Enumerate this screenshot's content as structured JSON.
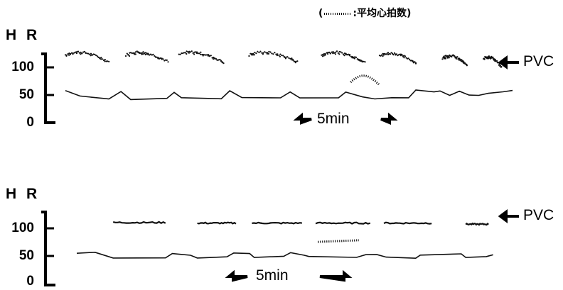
{
  "legend_note": {
    "open": "(",
    "text": ":平均心拍数)"
  },
  "chart_data": [
    {
      "type": "scatter",
      "ylabel": "H R",
      "yticks": [
        "100",
        "50",
        "0"
      ],
      "ytick_values": [
        100,
        50,
        0
      ],
      "ylim": [
        0,
        130
      ],
      "annotation": "PVC",
      "annotation_y": 108,
      "scale_bar": "5min",
      "grid": false,
      "upper_bursts": [
        {
          "t0": 0,
          "t1": 3.6,
          "shape": "arc",
          "peak": 130
        },
        {
          "t0": 5.0,
          "t1": 8.5,
          "shape": "arc",
          "peak": 130
        },
        {
          "t0": 9.4,
          "t1": 13.0,
          "shape": "arc",
          "peak": 130
        },
        {
          "t0": 15.2,
          "t1": 19.2,
          "shape": "arc",
          "peak": 130
        },
        {
          "t0": 21.2,
          "t1": 24.8,
          "shape": "arc",
          "peak": 130
        },
        {
          "t0": 26.0,
          "t1": 29.0,
          "shape": "arc",
          "peak": 128
        },
        {
          "t0": 31.2,
          "t1": 33.2,
          "shape": "arc",
          "peak": 124
        },
        {
          "t0": 34.6,
          "t1": 36.0,
          "shape": "arc",
          "peak": 122
        }
      ],
      "baseline": [
        [
          0,
          58
        ],
        [
          1.2,
          48
        ],
        [
          3.6,
          44
        ],
        [
          4.6,
          57
        ],
        [
          5.4,
          42
        ],
        [
          8.4,
          44
        ],
        [
          9.0,
          56
        ],
        [
          9.6,
          44
        ],
        [
          12.9,
          43
        ],
        [
          13.6,
          58
        ],
        [
          14.6,
          46
        ],
        [
          17.8,
          44
        ],
        [
          18.6,
          55
        ],
        [
          19.4,
          46
        ],
        [
          22.6,
          45
        ],
        [
          23.2,
          56
        ],
        [
          24.6,
          46
        ],
        [
          25.6,
          44
        ],
        [
          27.0,
          45
        ],
        [
          28.4,
          45
        ],
        [
          29.0,
          60
        ],
        [
          30.5,
          57
        ],
        [
          31.0,
          56
        ],
        [
          31.8,
          48
        ],
        [
          32.6,
          58
        ],
        [
          33.4,
          50
        ],
        [
          34.2,
          48
        ],
        [
          35.0,
          54
        ],
        [
          36.2,
          56
        ],
        [
          37.0,
          58
        ]
      ],
      "mean_hr": {
        "t0": 23.6,
        "t1": 26.0,
        "shape": "arc",
        "peak": 85,
        "end": 68
      }
    },
    {
      "type": "scatter",
      "ylabel": "H R",
      "yticks": [
        "100",
        "50",
        "0"
      ],
      "ytick_values": [
        100,
        50,
        0
      ],
      "ylim": [
        0,
        130
      ],
      "annotation": "PVC",
      "annotation_y": 108,
      "scale_bar": "5min",
      "grid": false,
      "upper_segments": [
        {
          "t0": 3.2,
          "t1": 7.8,
          "level": 113
        },
        {
          "t0": 10.6,
          "t1": 14.0,
          "level": 112
        },
        {
          "t0": 15.4,
          "t1": 19.8,
          "level": 112
        },
        {
          "t0": 21.0,
          "t1": 25.8,
          "level": 112
        },
        {
          "t0": 27.0,
          "t1": 31.2,
          "level": 112
        },
        {
          "t0": 34.2,
          "t1": 36.2,
          "level": 110
        }
      ],
      "baseline": [
        [
          0,
          57
        ],
        [
          1.6,
          58
        ],
        [
          3.2,
          50
        ],
        [
          7.8,
          50
        ],
        [
          8.4,
          56
        ],
        [
          10.0,
          55
        ],
        [
          10.6,
          50
        ],
        [
          13.2,
          50
        ],
        [
          13.8,
          57
        ],
        [
          15.2,
          56
        ],
        [
          15.6,
          50
        ],
        [
          18.2,
          52
        ],
        [
          18.8,
          58
        ],
        [
          20.0,
          55
        ],
        [
          20.4,
          51
        ],
        [
          24.6,
          51
        ],
        [
          25.4,
          56
        ],
        [
          26.4,
          54
        ],
        [
          27.2,
          50
        ],
        [
          29.8,
          50
        ],
        [
          30.2,
          55
        ],
        [
          33.8,
          56
        ],
        [
          34.2,
          51
        ],
        [
          36.0,
          52
        ],
        [
          36.6,
          55
        ]
      ],
      "mean_hr": {
        "t0": 21.2,
        "t1": 24.8,
        "shape": "line",
        "start": 78,
        "end": 81
      }
    }
  ]
}
